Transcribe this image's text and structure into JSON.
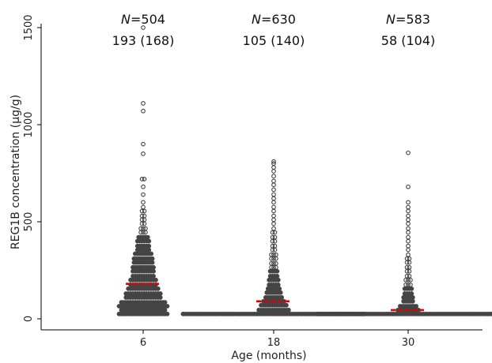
{
  "chart_data": {
    "type": "scatter",
    "title": "",
    "xlabel": "Age (months)",
    "ylabel": "REG1B concentration (µg/g)",
    "ylim": [
      0,
      1500
    ],
    "yticks": [
      0,
      500,
      1000,
      1500
    ],
    "categories": [
      "6",
      "18",
      "30"
    ],
    "groups": [
      {
        "category": "6",
        "n_label": "N=504",
        "n_prefix": "N",
        "n_value": "=504",
        "summary": "193 (168)",
        "median": 180,
        "bins": [
          {
            "y": 25,
            "count": 22
          },
          {
            "y": 45,
            "count": 20
          },
          {
            "y": 65,
            "count": 22
          },
          {
            "y": 85,
            "count": 20
          },
          {
            "y": 110,
            "count": 16
          },
          {
            "y": 130,
            "count": 16
          },
          {
            "y": 155,
            "count": 14
          },
          {
            "y": 175,
            "count": 12
          },
          {
            "y": 200,
            "count": 12
          },
          {
            "y": 220,
            "count": 10
          },
          {
            "y": 245,
            "count": 10
          },
          {
            "y": 265,
            "count": 10
          },
          {
            "y": 290,
            "count": 9
          },
          {
            "y": 310,
            "count": 9
          },
          {
            "y": 335,
            "count": 8
          },
          {
            "y": 355,
            "count": 6
          },
          {
            "y": 375,
            "count": 6
          },
          {
            "y": 400,
            "count": 6
          },
          {
            "y": 420,
            "count": 5
          },
          {
            "y": 445,
            "count": 3
          },
          {
            "y": 465,
            "count": 3
          },
          {
            "y": 490,
            "count": 2
          },
          {
            "y": 510,
            "count": 2
          },
          {
            "y": 530,
            "count": 2
          },
          {
            "y": 555,
            "count": 2
          },
          {
            "y": 575,
            "count": 1
          },
          {
            "y": 600,
            "count": 1
          },
          {
            "y": 640,
            "count": 1
          },
          {
            "y": 680,
            "count": 1
          },
          {
            "y": 720,
            "count": 2
          },
          {
            "y": 850,
            "count": 1
          },
          {
            "y": 900,
            "count": 1
          },
          {
            "y": 1070,
            "count": 1
          },
          {
            "y": 1110,
            "count": 1
          },
          {
            "y": 1500,
            "count": 1
          }
        ]
      },
      {
        "category": "18",
        "n_label": "N=630",
        "n_prefix": "N",
        "n_value": "=630",
        "summary": "105 (140)",
        "median": 90,
        "bins": [
          {
            "y": 25,
            "count": 80
          },
          {
            "y": 45,
            "count": 14
          },
          {
            "y": 70,
            "count": 12
          },
          {
            "y": 90,
            "count": 10
          },
          {
            "y": 110,
            "count": 8
          },
          {
            "y": 135,
            "count": 7
          },
          {
            "y": 155,
            "count": 6
          },
          {
            "y": 175,
            "count": 5
          },
          {
            "y": 200,
            "count": 5
          },
          {
            "y": 220,
            "count": 4
          },
          {
            "y": 245,
            "count": 4
          },
          {
            "y": 265,
            "count": 3
          },
          {
            "y": 285,
            "count": 3
          },
          {
            "y": 310,
            "count": 3
          },
          {
            "y": 330,
            "count": 3
          },
          {
            "y": 355,
            "count": 2
          },
          {
            "y": 375,
            "count": 2
          },
          {
            "y": 400,
            "count": 2
          },
          {
            "y": 420,
            "count": 2
          },
          {
            "y": 445,
            "count": 2
          },
          {
            "y": 465,
            "count": 1
          },
          {
            "y": 490,
            "count": 1
          },
          {
            "y": 510,
            "count": 1
          },
          {
            "y": 530,
            "count": 1
          },
          {
            "y": 555,
            "count": 1
          },
          {
            "y": 575,
            "count": 1
          },
          {
            "y": 600,
            "count": 1
          },
          {
            "y": 620,
            "count": 1
          },
          {
            "y": 640,
            "count": 1
          },
          {
            "y": 665,
            "count": 1
          },
          {
            "y": 690,
            "count": 1
          },
          {
            "y": 710,
            "count": 1
          },
          {
            "y": 735,
            "count": 1
          },
          {
            "y": 760,
            "count": 1
          },
          {
            "y": 780,
            "count": 1
          },
          {
            "y": 800,
            "count": 1
          },
          {
            "y": 810,
            "count": 1
          }
        ]
      },
      {
        "category": "30",
        "n_label": "N=583",
        "n_prefix": "N",
        "n_value": "=583",
        "summary": "58 (104)",
        "median": 45,
        "bins": [
          {
            "y": 25,
            "count": 80
          },
          {
            "y": 45,
            "count": 10
          },
          {
            "y": 65,
            "count": 8
          },
          {
            "y": 90,
            "count": 5
          },
          {
            "y": 110,
            "count": 5
          },
          {
            "y": 130,
            "count": 4
          },
          {
            "y": 155,
            "count": 4
          },
          {
            "y": 175,
            "count": 3
          },
          {
            "y": 200,
            "count": 3
          },
          {
            "y": 220,
            "count": 2
          },
          {
            "y": 245,
            "count": 2
          },
          {
            "y": 265,
            "count": 2
          },
          {
            "y": 290,
            "count": 2
          },
          {
            "y": 310,
            "count": 2
          },
          {
            "y": 330,
            "count": 1
          },
          {
            "y": 355,
            "count": 1
          },
          {
            "y": 375,
            "count": 1
          },
          {
            "y": 400,
            "count": 1
          },
          {
            "y": 420,
            "count": 1
          },
          {
            "y": 445,
            "count": 1
          },
          {
            "y": 465,
            "count": 1
          },
          {
            "y": 490,
            "count": 1
          },
          {
            "y": 510,
            "count": 1
          },
          {
            "y": 530,
            "count": 1
          },
          {
            "y": 555,
            "count": 1
          },
          {
            "y": 575,
            "count": 1
          },
          {
            "y": 600,
            "count": 1
          },
          {
            "y": 680,
            "count": 1
          },
          {
            "y": 855,
            "count": 1
          }
        ]
      }
    ],
    "grid": false,
    "legend": "none",
    "colors": {
      "points": "#404040",
      "median": "#e00000"
    }
  }
}
